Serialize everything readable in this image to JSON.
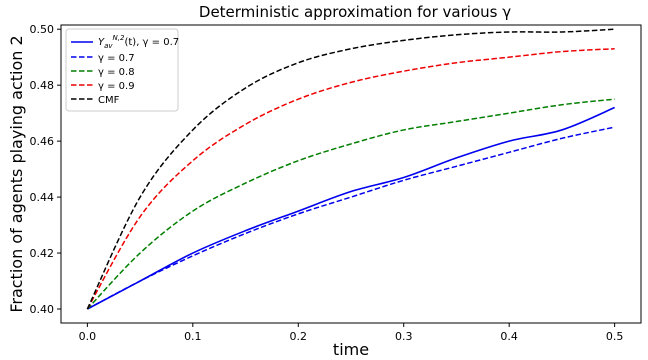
{
  "chart_data": {
    "type": "line",
    "title": "Deterministic approximation for various γ",
    "xlabel": "time",
    "ylabel": "Fraction of agents playing action 2",
    "xlim": [
      -0.025,
      0.525
    ],
    "ylim": [
      0.395,
      0.5015
    ],
    "xticks": [
      0.0,
      0.1,
      0.2,
      0.3,
      0.4,
      0.5
    ],
    "xtick_labels": [
      "0.0",
      "0.1",
      "0.2",
      "0.3",
      "0.4",
      "0.5"
    ],
    "yticks": [
      0.4,
      0.42,
      0.44,
      0.46,
      0.48,
      0.5
    ],
    "ytick_labels": [
      "0.40",
      "0.42",
      "0.44",
      "0.46",
      "0.48",
      "0.50"
    ],
    "grid": false,
    "legend_position": "top-left",
    "x": [
      0.0,
      0.05,
      0.1,
      0.15,
      0.2,
      0.25,
      0.3,
      0.35,
      0.4,
      0.45,
      0.5
    ],
    "series": [
      {
        "name": "Y_av^{N,2}(t), γ = 0.7",
        "color": "#0000ee",
        "style": "solid",
        "values": [
          0.4,
          0.41,
          0.42,
          0.428,
          0.435,
          0.442,
          0.447,
          0.454,
          0.46,
          0.464,
          0.472
        ]
      },
      {
        "name": "γ = 0.7",
        "color": "#0000ee",
        "style": "dashed",
        "values": [
          0.4,
          0.41,
          0.419,
          0.427,
          0.434,
          0.44,
          0.446,
          0.451,
          0.456,
          0.461,
          0.465
        ]
      },
      {
        "name": "γ = 0.8",
        "color": "#007f00",
        "style": "dashed",
        "values": [
          0.4,
          0.42,
          0.435,
          0.445,
          0.453,
          0.459,
          0.464,
          0.467,
          0.47,
          0.473,
          0.475
        ]
      },
      {
        "name": "γ = 0.9",
        "color": "#ee0000",
        "style": "dashed",
        "values": [
          0.4,
          0.433,
          0.453,
          0.466,
          0.475,
          0.481,
          0.485,
          0.488,
          0.49,
          0.492,
          0.493
        ]
      },
      {
        "name": "CMF",
        "color": "#000000",
        "style": "dashed",
        "values": [
          0.4,
          0.44,
          0.464,
          0.479,
          0.488,
          0.493,
          0.496,
          0.498,
          0.499,
          0.499,
          0.5
        ]
      }
    ],
    "legend": [
      {
        "label_main": "Y",
        "label_sup": "N,2",
        "label_sub": "av",
        "label_rest": "(t), γ = 0.7"
      },
      {
        "label": "γ = 0.7"
      },
      {
        "label": "γ = 0.8"
      },
      {
        "label": "γ = 0.9"
      },
      {
        "label": "CMF"
      }
    ]
  }
}
